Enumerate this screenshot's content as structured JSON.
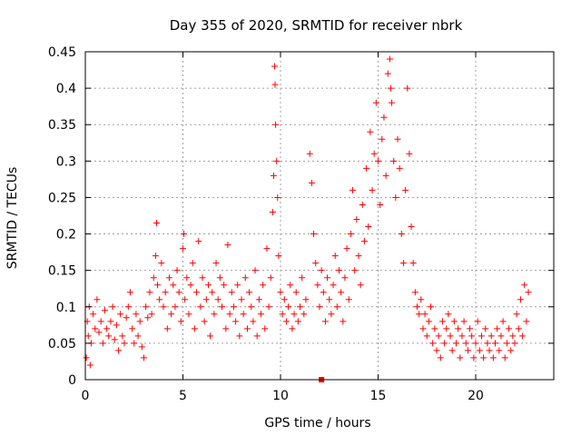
{
  "chart_data": {
    "type": "scatter",
    "title": "Day 355 of 2020, SRMTID for receiver nbrk",
    "xlabel": "GPS time / hours",
    "ylabel": "SRMTID / TECUs",
    "xlim": [
      0,
      24
    ],
    "ylim": [
      0,
      0.45
    ],
    "x_ticks": [
      0,
      5,
      10,
      15,
      20
    ],
    "y_ticks": [
      0,
      0.05,
      0.1,
      0.15,
      0.2,
      0.25,
      0.3,
      0.35,
      0.4,
      0.45
    ],
    "x_tick_labels": [
      "0",
      "5",
      "10",
      "15",
      "20"
    ],
    "y_tick_labels": [
      "0",
      "0.05",
      "0.1",
      "0.15",
      "0.2",
      "0.25",
      "0.3",
      "0.35",
      "0.4",
      "0.45"
    ],
    "grid": true,
    "marker": "+",
    "color": "#ff0000",
    "series": [
      {
        "name": "SRMTID",
        "points": [
          [
            0.05,
            0.03
          ],
          [
            0.1,
            0.08
          ],
          [
            0.15,
            0.06
          ],
          [
            0.2,
            0.1
          ],
          [
            0.25,
            0.02
          ],
          [
            0.3,
            0.05
          ],
          [
            0.4,
            0.09
          ],
          [
            0.5,
            0.07
          ],
          [
            0.6,
            0.11
          ],
          [
            0.7,
            0.065
          ],
          [
            0.8,
            0.08
          ],
          [
            0.9,
            0.05
          ],
          [
            1.0,
            0.095
          ],
          [
            1.1,
            0.07
          ],
          [
            1.2,
            0.06
          ],
          [
            1.3,
            0.08
          ],
          [
            1.4,
            0.1
          ],
          [
            1.5,
            0.055
          ],
          [
            1.6,
            0.075
          ],
          [
            1.7,
            0.04
          ],
          [
            1.8,
            0.09
          ],
          [
            1.9,
            0.06
          ],
          [
            2.0,
            0.05
          ],
          [
            2.1,
            0.085
          ],
          [
            2.2,
            0.1
          ],
          [
            2.3,
            0.12
          ],
          [
            2.4,
            0.07
          ],
          [
            2.5,
            0.05
          ],
          [
            2.6,
            0.09
          ],
          [
            2.7,
            0.06
          ],
          [
            2.8,
            0.08
          ],
          [
            2.9,
            0.045
          ],
          [
            3.0,
            0.03
          ],
          [
            3.1,
            0.1
          ],
          [
            3.2,
            0.085
          ],
          [
            3.3,
            0.12
          ],
          [
            3.4,
            0.09
          ],
          [
            3.5,
            0.14
          ],
          [
            3.6,
            0.17
          ],
          [
            3.65,
            0.215
          ],
          [
            3.7,
            0.13
          ],
          [
            3.8,
            0.11
          ],
          [
            3.9,
            0.16
          ],
          [
            4.0,
            0.1
          ],
          [
            4.1,
            0.12
          ],
          [
            4.2,
            0.07
          ],
          [
            4.3,
            0.14
          ],
          [
            4.4,
            0.09
          ],
          [
            4.5,
            0.13
          ],
          [
            4.6,
            0.1
          ],
          [
            4.7,
            0.15
          ],
          [
            4.8,
            0.12
          ],
          [
            4.9,
            0.08
          ],
          [
            5.0,
            0.18
          ],
          [
            5.05,
            0.2
          ],
          [
            5.1,
            0.11
          ],
          [
            5.2,
            0.14
          ],
          [
            5.3,
            0.09
          ],
          [
            5.4,
            0.13
          ],
          [
            5.5,
            0.16
          ],
          [
            5.6,
            0.07
          ],
          [
            5.7,
            0.12
          ],
          [
            5.8,
            0.19
          ],
          [
            5.9,
            0.1
          ],
          [
            6.0,
            0.14
          ],
          [
            6.1,
            0.08
          ],
          [
            6.2,
            0.11
          ],
          [
            6.3,
            0.13
          ],
          [
            6.4,
            0.06
          ],
          [
            6.5,
            0.12
          ],
          [
            6.6,
            0.09
          ],
          [
            6.7,
            0.16
          ],
          [
            6.8,
            0.11
          ],
          [
            6.9,
            0.14
          ],
          [
            7.0,
            0.1
          ],
          [
            7.1,
            0.13
          ],
          [
            7.2,
            0.07
          ],
          [
            7.3,
            0.185
          ],
          [
            7.4,
            0.09
          ],
          [
            7.5,
            0.12
          ],
          [
            7.6,
            0.1
          ],
          [
            7.7,
            0.08
          ],
          [
            7.8,
            0.13
          ],
          [
            7.9,
            0.06
          ],
          [
            8.0,
            0.11
          ],
          [
            8.1,
            0.09
          ],
          [
            8.2,
            0.14
          ],
          [
            8.3,
            0.07
          ],
          [
            8.4,
            0.12
          ],
          [
            8.5,
            0.1
          ],
          [
            8.6,
            0.08
          ],
          [
            8.7,
            0.15
          ],
          [
            8.8,
            0.06
          ],
          [
            8.9,
            0.11
          ],
          [
            9.0,
            0.09
          ],
          [
            9.1,
            0.13
          ],
          [
            9.2,
            0.07
          ],
          [
            9.3,
            0.18
          ],
          [
            9.4,
            0.1
          ],
          [
            9.5,
            0.14
          ],
          [
            9.6,
            0.23
          ],
          [
            9.65,
            0.28
          ],
          [
            9.7,
            0.43
          ],
          [
            9.72,
            0.405
          ],
          [
            9.75,
            0.35
          ],
          [
            9.8,
            0.3
          ],
          [
            9.85,
            0.25
          ],
          [
            9.9,
            0.17
          ],
          [
            10.0,
            0.12
          ],
          [
            10.1,
            0.09
          ],
          [
            10.2,
            0.11
          ],
          [
            10.3,
            0.08
          ],
          [
            10.4,
            0.1
          ],
          [
            10.5,
            0.13
          ],
          [
            10.6,
            0.07
          ],
          [
            10.7,
            0.09
          ],
          [
            10.8,
            0.12
          ],
          [
            10.9,
            0.08
          ],
          [
            11.0,
            0.1
          ],
          [
            11.1,
            0.14
          ],
          [
            11.2,
            0.09
          ],
          [
            11.3,
            0.11
          ],
          [
            11.5,
            0.31
          ],
          [
            11.6,
            0.27
          ],
          [
            11.7,
            0.2
          ],
          [
            11.8,
            0.16
          ],
          [
            11.9,
            0.13
          ],
          [
            12.0,
            0.1
          ],
          [
            12.1,
            0.15
          ],
          [
            12.2,
            0.12
          ],
          [
            12.3,
            0.08
          ],
          [
            12.4,
            0.14
          ],
          [
            12.5,
            0.11
          ],
          [
            12.6,
            0.09
          ],
          [
            12.7,
            0.13
          ],
          [
            12.8,
            0.17
          ],
          [
            12.9,
            0.1
          ],
          [
            13.0,
            0.15
          ],
          [
            13.1,
            0.12
          ],
          [
            13.2,
            0.08
          ],
          [
            13.3,
            0.14
          ],
          [
            13.4,
            0.18
          ],
          [
            13.5,
            0.11
          ],
          [
            13.6,
            0.2
          ],
          [
            13.7,
            0.26
          ],
          [
            13.8,
            0.15
          ],
          [
            13.9,
            0.22
          ],
          [
            14.0,
            0.17
          ],
          [
            14.1,
            0.13
          ],
          [
            14.2,
            0.24
          ],
          [
            14.3,
            0.19
          ],
          [
            14.4,
            0.29
          ],
          [
            14.5,
            0.21
          ],
          [
            14.6,
            0.34
          ],
          [
            14.7,
            0.26
          ],
          [
            14.8,
            0.31
          ],
          [
            14.9,
            0.38
          ],
          [
            15.0,
            0.3
          ],
          [
            15.1,
            0.24
          ],
          [
            15.2,
            0.33
          ],
          [
            15.3,
            0.36
          ],
          [
            15.4,
            0.28
          ],
          [
            15.5,
            0.42
          ],
          [
            15.6,
            0.44
          ],
          [
            15.65,
            0.4
          ],
          [
            15.7,
            0.38
          ],
          [
            15.8,
            0.3
          ],
          [
            15.9,
            0.25
          ],
          [
            16.0,
            0.33
          ],
          [
            16.1,
            0.29
          ],
          [
            16.2,
            0.2
          ],
          [
            16.3,
            0.16
          ],
          [
            16.4,
            0.26
          ],
          [
            16.5,
            0.4
          ],
          [
            16.6,
            0.31
          ],
          [
            16.7,
            0.21
          ],
          [
            16.8,
            0.16
          ],
          [
            16.9,
            0.12
          ],
          [
            17.0,
            0.1
          ],
          [
            17.1,
            0.09
          ],
          [
            17.2,
            0.11
          ],
          [
            17.3,
            0.07
          ],
          [
            17.4,
            0.09
          ],
          [
            17.5,
            0.06
          ],
          [
            17.6,
            0.08
          ],
          [
            17.7,
            0.1
          ],
          [
            17.8,
            0.05
          ],
          [
            17.9,
            0.07
          ],
          [
            18.0,
            0.04
          ],
          [
            18.1,
            0.06
          ],
          [
            18.2,
            0.03
          ],
          [
            18.3,
            0.08
          ],
          [
            18.4,
            0.05
          ],
          [
            18.5,
            0.07
          ],
          [
            18.6,
            0.09
          ],
          [
            18.7,
            0.06
          ],
          [
            18.8,
            0.04
          ],
          [
            18.9,
            0.08
          ],
          [
            19.0,
            0.05
          ],
          [
            19.1,
            0.07
          ],
          [
            19.2,
            0.03
          ],
          [
            19.3,
            0.06
          ],
          [
            19.4,
            0.08
          ],
          [
            19.5,
            0.05
          ],
          [
            19.6,
            0.04
          ],
          [
            19.7,
            0.07
          ],
          [
            19.8,
            0.06
          ],
          [
            19.9,
            0.03
          ],
          [
            20.0,
            0.05
          ],
          [
            20.1,
            0.08
          ],
          [
            20.2,
            0.04
          ],
          [
            20.3,
            0.06
          ],
          [
            20.4,
            0.03
          ],
          [
            20.5,
            0.07
          ],
          [
            20.6,
            0.05
          ],
          [
            20.7,
            0.04
          ],
          [
            20.8,
            0.06
          ],
          [
            20.9,
            0.03
          ],
          [
            21.0,
            0.05
          ],
          [
            21.1,
            0.07
          ],
          [
            21.2,
            0.04
          ],
          [
            21.3,
            0.06
          ],
          [
            21.4,
            0.08
          ],
          [
            21.5,
            0.03
          ],
          [
            21.6,
            0.05
          ],
          [
            21.7,
            0.07
          ],
          [
            21.8,
            0.04
          ],
          [
            21.9,
            0.06
          ],
          [
            22.0,
            0.05
          ],
          [
            22.1,
            0.09
          ],
          [
            22.2,
            0.07
          ],
          [
            22.3,
            0.11
          ],
          [
            22.4,
            0.06
          ],
          [
            22.5,
            0.13
          ],
          [
            22.6,
            0.08
          ],
          [
            22.7,
            0.12
          ]
        ]
      }
    ],
    "outlier_points": [
      [
        12.1,
        0.0
      ]
    ]
  }
}
